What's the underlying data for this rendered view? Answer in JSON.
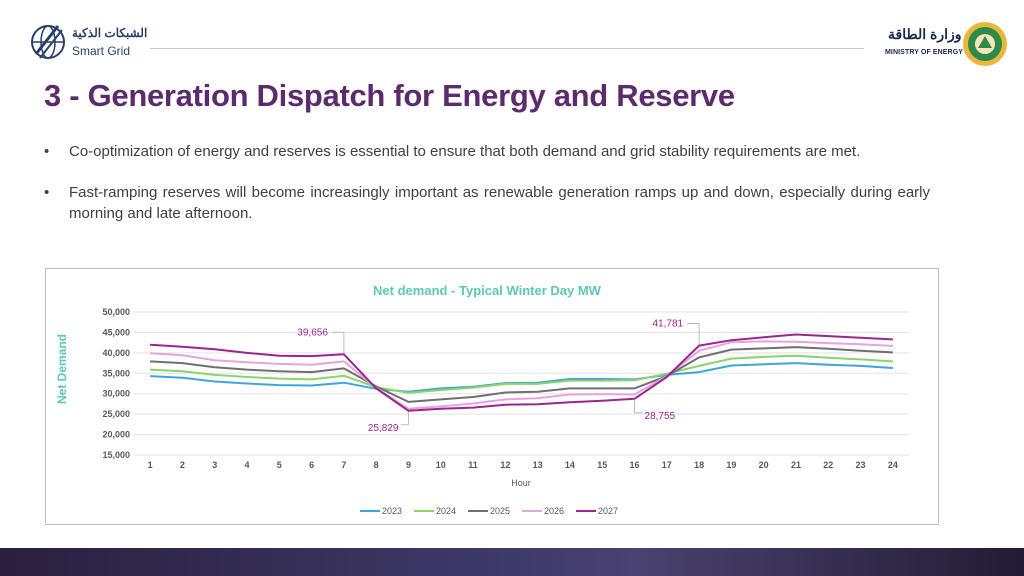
{
  "header": {
    "left_logo_arabic": "الشبكات الذكية",
    "left_logo_english": "Smart Grid",
    "right_logo_arabic": "وزارة الطاقة",
    "right_logo_english": "MINISTRY OF ENERGY"
  },
  "title": "3 - Generation Dispatch for Energy and Reserve",
  "bullets": [
    {
      "symbol": "•",
      "text": "Co-optimization of energy and reserves is essential to ensure that both demand and grid stability requirements are met."
    },
    {
      "symbol": "•",
      "text": "Fast-ramping reserves will become increasingly important as renewable generation ramps up and down, especially during early morning and late afternoon."
    }
  ],
  "chart_data": {
    "type": "line",
    "title": "Net demand - Typical Winter Day MW",
    "xlabel": "Hour",
    "ylabel": "Net Demand",
    "x": [
      1,
      2,
      3,
      4,
      5,
      6,
      7,
      8,
      9,
      10,
      11,
      12,
      13,
      14,
      15,
      16,
      17,
      18,
      19,
      20,
      21,
      22,
      23,
      24
    ],
    "ylim": [
      15000,
      50000
    ],
    "yticks": [
      15000,
      20000,
      25000,
      30000,
      35000,
      40000,
      45000,
      50000
    ],
    "ytick_labels": [
      "15,000",
      "20,000",
      "25,000",
      "30,000",
      "35,000",
      "40,000",
      "45,000",
      "50,000"
    ],
    "grid": true,
    "legend_position": "bottom",
    "series": [
      {
        "name": "2023",
        "color": "#3fa7d6",
        "values": [
          34300,
          33900,
          33000,
          32500,
          32100,
          32000,
          32700,
          31200,
          30500,
          31300,
          31700,
          32600,
          32700,
          33600,
          33600,
          33500,
          34600,
          35300,
          36900,
          37200,
          37500,
          37100,
          36800,
          36300
        ]
      },
      {
        "name": "2024",
        "color": "#8bd36b",
        "values": [
          35900,
          35500,
          34600,
          34100,
          33700,
          33500,
          34400,
          31600,
          30200,
          30900,
          31500,
          32400,
          32400,
          33200,
          33200,
          33300,
          34900,
          36800,
          38600,
          39000,
          39300,
          38800,
          38400,
          37900
        ]
      },
      {
        "name": "2025",
        "color": "#707070",
        "values": [
          37900,
          37500,
          36500,
          35900,
          35500,
          35300,
          36200,
          31800,
          28000,
          28600,
          29200,
          30300,
          30500,
          31300,
          31300,
          31300,
          34300,
          38900,
          40800,
          41100,
          41400,
          41000,
          40500,
          40100
        ]
      },
      {
        "name": "2026",
        "color": "#e6a3dc",
        "values": [
          39900,
          39400,
          38200,
          37700,
          37300,
          37100,
          37900,
          31400,
          26300,
          26900,
          27600,
          28600,
          28900,
          29800,
          29900,
          29800,
          34300,
          40500,
          42600,
          42800,
          42700,
          42400,
          42100,
          41700
        ]
      },
      {
        "name": "2027",
        "color": "#9b2590",
        "values": [
          42000,
          41500,
          40900,
          40000,
          39300,
          39200,
          39656,
          31300,
          25829,
          26300,
          26600,
          27300,
          27400,
          27900,
          28300,
          28755,
          34100,
          41781,
          43100,
          43800,
          44500,
          44100,
          43700,
          43300
        ]
      }
    ],
    "annotations": [
      {
        "text": "39,656",
        "x": 7,
        "y": 39656,
        "anchor": "above"
      },
      {
        "text": "41,781",
        "x": 18,
        "y": 41781,
        "anchor": "above"
      },
      {
        "text": "25,829",
        "x": 9,
        "y": 25829,
        "anchor": "below"
      },
      {
        "text": "28,755",
        "x": 16,
        "y": 28755,
        "anchor": "below"
      }
    ]
  },
  "colors": {
    "title": "#5b2b6e",
    "chart_title": "#5ec8b0",
    "axis_label": "#5ec8b0",
    "annotation": "#9b2590",
    "tick": "#595959"
  }
}
